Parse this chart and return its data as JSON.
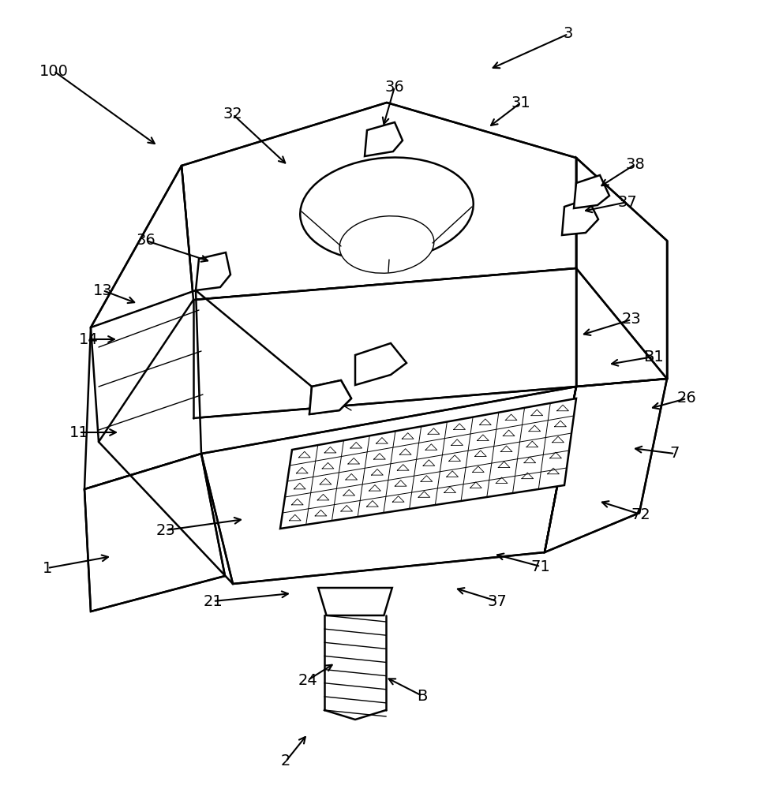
{
  "fig_width": 9.73,
  "fig_height": 10.0,
  "dpi": 100,
  "bg_color": "#ffffff",
  "lc": "#000000",
  "lw": 1.8,
  "tlw": 1.0,
  "font_sz": 14,
  "arrowhead_scale": 14
}
